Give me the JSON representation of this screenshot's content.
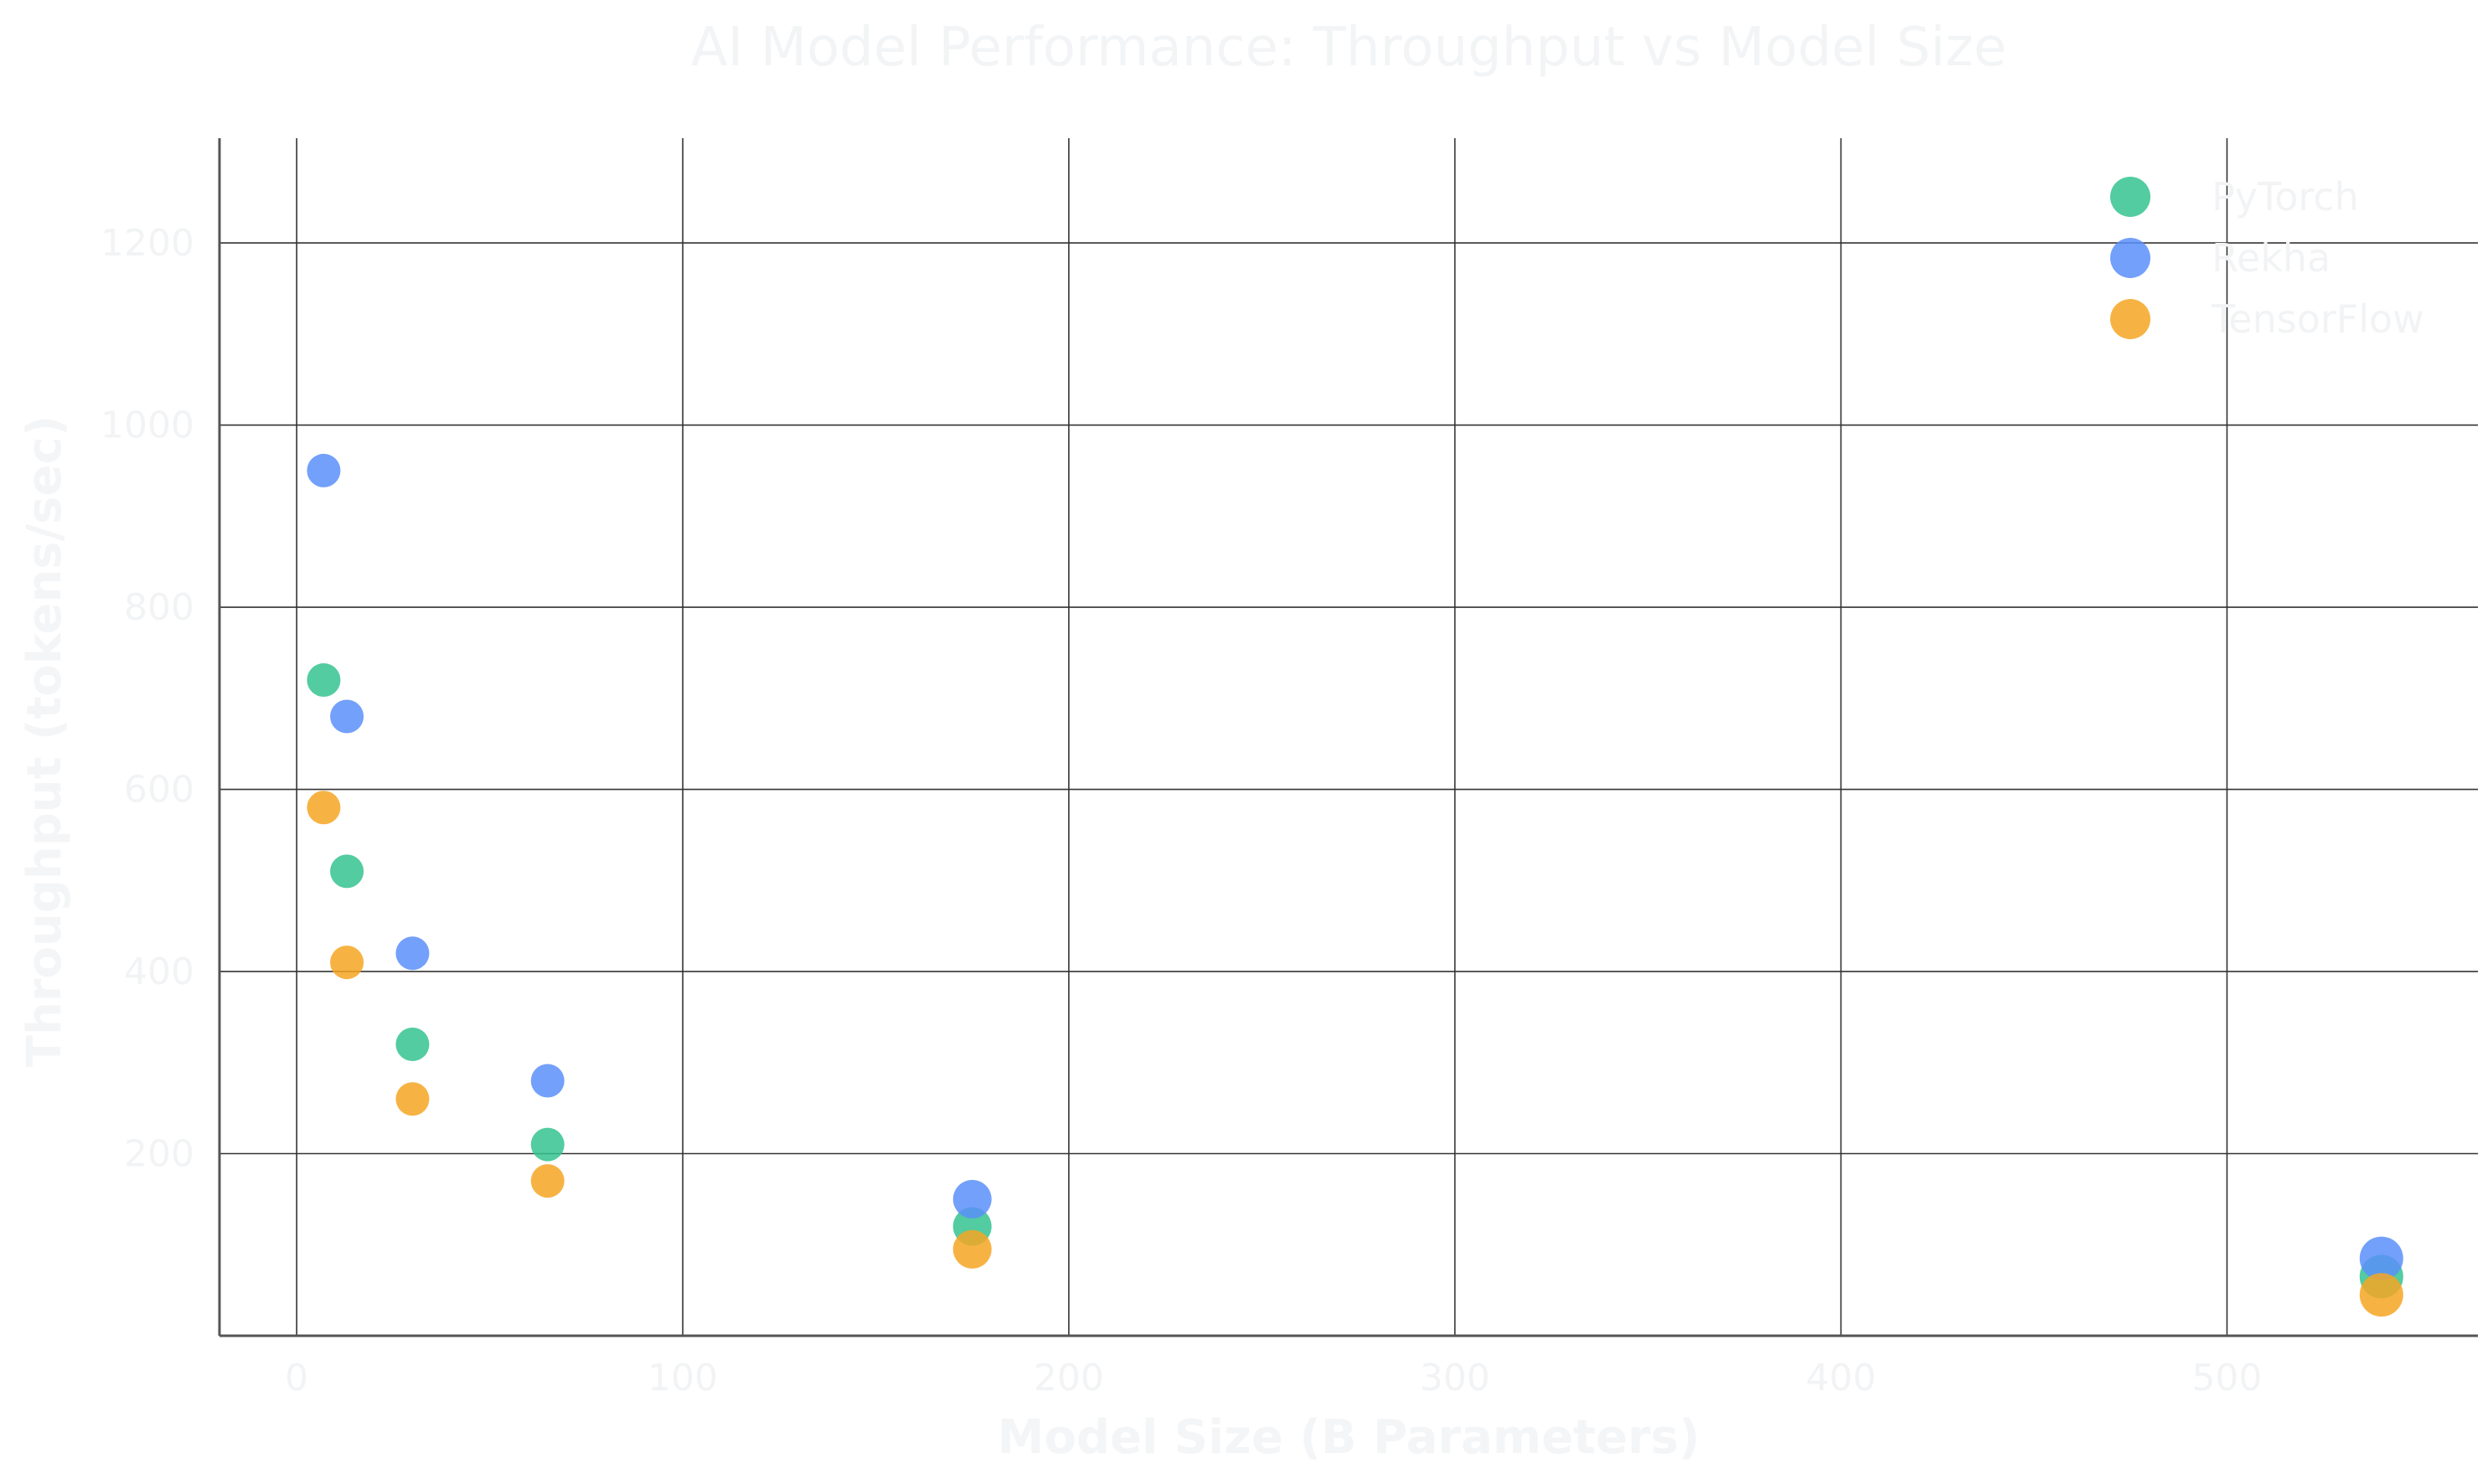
{
  "chart_data": {
    "type": "scatter",
    "title": "AI Model Performance: Throughput vs Model Size",
    "xlabel": "Model Size (B Parameters)",
    "ylabel": "Throughput (tokens/sec)",
    "xlim": [
      -20,
      565
    ],
    "ylim": [
      0,
      1315
    ],
    "xticks": [
      0,
      100,
      200,
      300,
      400,
      500
    ],
    "yticks": [
      200,
      400,
      600,
      800,
      1000,
      1200
    ],
    "grid": true,
    "legend": "top-right",
    "series": [
      {
        "name": "PyTorch",
        "color": "#34c38f",
        "points": [
          {
            "x": 7,
            "y": 720
          },
          {
            "x": 13,
            "y": 510
          },
          {
            "x": 30,
            "y": 320
          },
          {
            "x": 65,
            "y": 210
          },
          {
            "x": 175,
            "y": 120
          },
          {
            "x": 540,
            "y": 65
          }
        ]
      },
      {
        "name": "Rekha",
        "color": "#5b8ff9",
        "points": [
          {
            "x": 7,
            "y": 950
          },
          {
            "x": 13,
            "y": 680
          },
          {
            "x": 30,
            "y": 420
          },
          {
            "x": 65,
            "y": 280
          },
          {
            "x": 175,
            "y": 150
          },
          {
            "x": 540,
            "y": 85
          }
        ]
      },
      {
        "name": "TensorFlow",
        "color": "#f5a623",
        "points": [
          {
            "x": 7,
            "y": 580
          },
          {
            "x": 13,
            "y": 410
          },
          {
            "x": 30,
            "y": 260
          },
          {
            "x": 65,
            "y": 170
          },
          {
            "x": 175,
            "y": 95
          },
          {
            "x": 540,
            "y": 45
          }
        ]
      }
    ]
  }
}
